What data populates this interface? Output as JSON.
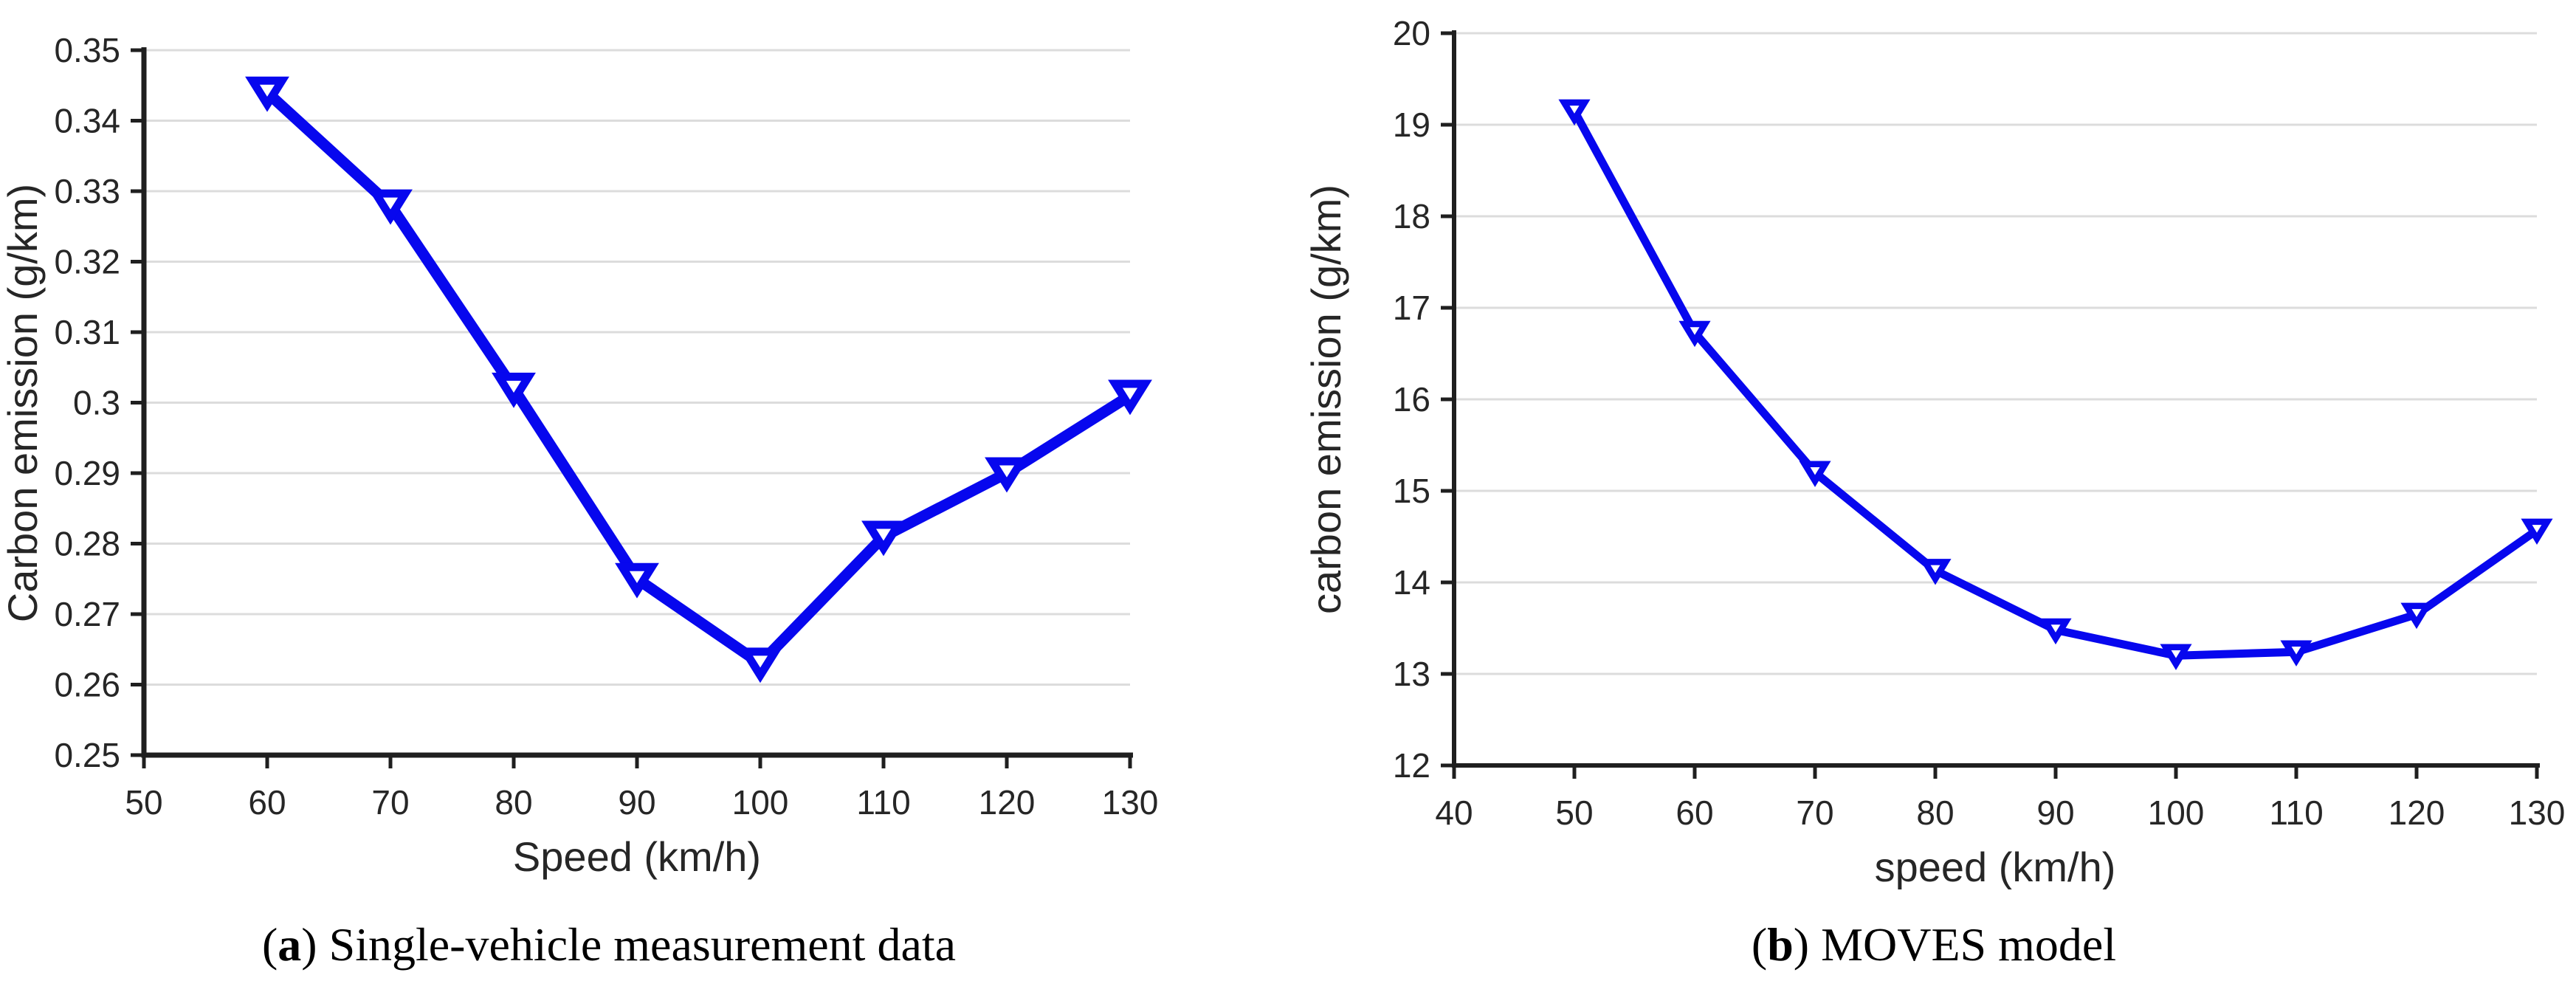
{
  "figure": {
    "background": "#ffffff",
    "caption_a": {
      "open": "(",
      "letter": "a",
      "close": ")",
      "text": "Single-vehicle measurement data"
    },
    "caption_b": {
      "open": "(",
      "letter": "b",
      "close": ")",
      "text": "MOVES model"
    }
  },
  "chart_data": [
    {
      "id": "a",
      "type": "line",
      "title": "(a) Single-vehicle measurement data",
      "xlabel": "Speed (km/h)",
      "ylabel": "Carbon emission (g/km)",
      "x": [
        60,
        70,
        80,
        90,
        100,
        110,
        120,
        130
      ],
      "y": [
        0.344,
        0.328,
        0.302,
        0.275,
        0.263,
        0.281,
        0.29,
        0.301
      ],
      "xlim": [
        50,
        130
      ],
      "ylim": [
        0.25,
        0.35
      ],
      "xtick_values": [
        50,
        60,
        70,
        80,
        90,
        100,
        110,
        120,
        130
      ],
      "xtick_labels": [
        "50",
        "60",
        "70",
        "80",
        "90",
        "100",
        "110",
        "120",
        "130"
      ],
      "ytick_values": [
        0.25,
        0.26,
        0.27,
        0.28,
        0.29,
        0.3,
        0.31,
        0.32,
        0.33,
        0.34,
        0.35
      ],
      "ytick_labels": [
        "0.25",
        "0.26",
        "0.27",
        "0.28",
        "0.29",
        "0.3",
        "0.31",
        "0.32",
        "0.33",
        "0.34",
        "0.35"
      ],
      "grid": "horizontal",
      "legend": "none",
      "marker": "triangle-down-open",
      "line_color": "#0707ee",
      "marker_fill": "#ffffff",
      "grid_color": "#dcdcdc",
      "axis_color": "#1f1f1f",
      "text_color": "#262626"
    },
    {
      "id": "b",
      "type": "line",
      "title": "(b) MOVES model",
      "xlabel": "speed (km/h)",
      "ylabel": "carbon emission (g/km)",
      "x": [
        50,
        60,
        70,
        80,
        90,
        100,
        110,
        120,
        130
      ],
      "y": [
        19.15,
        16.73,
        15.2,
        14.13,
        13.48,
        13.2,
        13.24,
        13.65,
        14.57
      ],
      "xlim": [
        40,
        130
      ],
      "ylim": [
        12,
        20
      ],
      "xtick_values": [
        40,
        50,
        60,
        70,
        80,
        90,
        100,
        110,
        120,
        130
      ],
      "xtick_labels": [
        "40",
        "50",
        "60",
        "70",
        "80",
        "90",
        "100",
        "110",
        "120",
        "130"
      ],
      "ytick_values": [
        12,
        13,
        14,
        15,
        16,
        17,
        18,
        19,
        20
      ],
      "ytick_labels": [
        "12",
        "13",
        "14",
        "15",
        "16",
        "17",
        "18",
        "19",
        "20"
      ],
      "grid": "horizontal",
      "legend": "none",
      "marker": "triangle-down-open",
      "line_color": "#0707ee",
      "marker_fill": "#ffffff",
      "grid_color": "#dcdcdc",
      "axis_color": "#1f1f1f",
      "text_color": "#262626"
    }
  ]
}
